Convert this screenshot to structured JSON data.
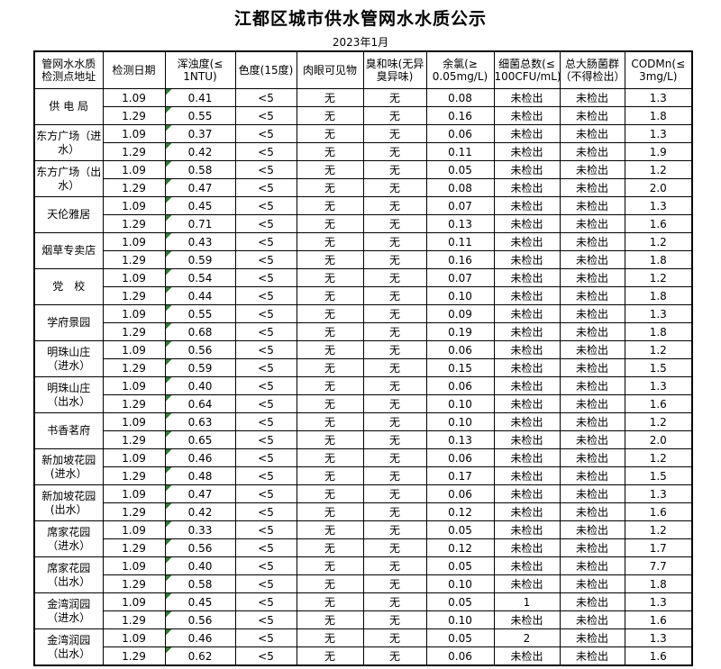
{
  "title": "江都区城市供水管网水水质公示",
  "subtitle": "2023年1月",
  "colors": {
    "triangle_green": "#2e7d32",
    "border": "#000000",
    "background": "#ffffff"
  },
  "table": {
    "headers": [
      "管网水水质\n检测点地址",
      "检测日期",
      "浑浊度(≤\n1NTU)",
      "色度(15度)",
      "肉眼可见物",
      "臭和味(无异\n臭异味)",
      "余氯(≥\n0.05mg/L)",
      "细菌总数(≤\n100CFU/mL)",
      "总大肠菌群\n（不得检出）",
      "CODMn(≤\n3mg/L)"
    ],
    "groups": [
      {
        "location": "供 电 局",
        "rows": [
          {
            "date": "1.09",
            "turbidity": "0.41",
            "color": "<5",
            "visible": "无",
            "odor": "无",
            "chlorine": "0.08",
            "bacteria": "未检出",
            "coliform": "未检出",
            "codmn": "1.3"
          },
          {
            "date": "1.29",
            "turbidity": "0.55",
            "color": "<5",
            "visible": "无",
            "odor": "无",
            "chlorine": "0.16",
            "bacteria": "未检出",
            "coliform": "未检出",
            "codmn": "1.8"
          }
        ]
      },
      {
        "location": "东方广场（进\n水）",
        "rows": [
          {
            "date": "1.09",
            "turbidity": "0.37",
            "color": "<5",
            "visible": "无",
            "odor": "无",
            "chlorine": "0.06",
            "bacteria": "未检出",
            "coliform": "未检出",
            "codmn": "1.3"
          },
          {
            "date": "1.29",
            "turbidity": "0.42",
            "color": "<5",
            "visible": "无",
            "odor": "无",
            "chlorine": "0.11",
            "bacteria": "未检出",
            "coliform": "未检出",
            "codmn": "1.9"
          }
        ]
      },
      {
        "location": "东方广场（出\n水）",
        "rows": [
          {
            "date": "1.09",
            "turbidity": "0.58",
            "color": "<5",
            "visible": "无",
            "odor": "无",
            "chlorine": "0.05",
            "bacteria": "未检出",
            "coliform": "未检出",
            "codmn": "1.2"
          },
          {
            "date": "1.29",
            "turbidity": "0.47",
            "color": "<5",
            "visible": "无",
            "odor": "无",
            "chlorine": "0.08",
            "bacteria": "未检出",
            "coliform": "未检出",
            "codmn": "2.0"
          }
        ]
      },
      {
        "location": "天伦雅居",
        "rows": [
          {
            "date": "1.09",
            "turbidity": "0.45",
            "color": "<5",
            "visible": "无",
            "odor": "无",
            "chlorine": "0.07",
            "bacteria": "未检出",
            "coliform": "未检出",
            "codmn": "1.3"
          },
          {
            "date": "1.29",
            "turbidity": "0.71",
            "color": "<5",
            "visible": "无",
            "odor": "无",
            "chlorine": "0.13",
            "bacteria": "未检出",
            "coliform": "未检出",
            "codmn": "1.6"
          }
        ]
      },
      {
        "location": "烟草专卖店",
        "rows": [
          {
            "date": "1.09",
            "turbidity": "0.43",
            "color": "<5",
            "visible": "无",
            "odor": "无",
            "chlorine": "0.11",
            "bacteria": "未检出",
            "coliform": "未检出",
            "codmn": "1.2"
          },
          {
            "date": "1.29",
            "turbidity": "0.59",
            "color": "<5",
            "visible": "无",
            "odor": "无",
            "chlorine": "0.16",
            "bacteria": "未检出",
            "coliform": "未检出",
            "codmn": "1.8"
          }
        ]
      },
      {
        "location": "党　校",
        "rows": [
          {
            "date": "1.09",
            "turbidity": "0.54",
            "color": "<5",
            "visible": "无",
            "odor": "无",
            "chlorine": "0.07",
            "bacteria": "未检出",
            "coliform": "未检出",
            "codmn": "1.2"
          },
          {
            "date": "1.29",
            "turbidity": "0.44",
            "color": "<5",
            "visible": "无",
            "odor": "无",
            "chlorine": "0.10",
            "bacteria": "未检出",
            "coliform": "未检出",
            "codmn": "1.8"
          }
        ]
      },
      {
        "location": "学府景园",
        "rows": [
          {
            "date": "1.09",
            "turbidity": "0.55",
            "color": "<5",
            "visible": "无",
            "odor": "无",
            "chlorine": "0.09",
            "bacteria": "未检出",
            "coliform": "未检出",
            "codmn": "1.3"
          },
          {
            "date": "1.29",
            "turbidity": "0.68",
            "color": "<5",
            "visible": "无",
            "odor": "无",
            "chlorine": "0.19",
            "bacteria": "未检出",
            "coliform": "未检出",
            "codmn": "1.8"
          }
        ]
      },
      {
        "location": "明珠山庄\n（进水）",
        "rows": [
          {
            "date": "1.09",
            "turbidity": "0.56",
            "color": "<5",
            "visible": "无",
            "odor": "无",
            "chlorine": "0.06",
            "bacteria": "未检出",
            "coliform": "未检出",
            "codmn": "1.2"
          },
          {
            "date": "1.29",
            "turbidity": "0.59",
            "color": "<5",
            "visible": "无",
            "odor": "无",
            "chlorine": "0.15",
            "bacteria": "未检出",
            "coliform": "未检出",
            "codmn": "1.5"
          }
        ]
      },
      {
        "location": "明珠山庄\n（出水）",
        "rows": [
          {
            "date": "1.09",
            "turbidity": "0.40",
            "color": "<5",
            "visible": "无",
            "odor": "无",
            "chlorine": "0.06",
            "bacteria": "未检出",
            "coliform": "未检出",
            "codmn": "1.3"
          },
          {
            "date": "1.29",
            "turbidity": "0.64",
            "color": "<5",
            "visible": "无",
            "odor": "无",
            "chlorine": "0.10",
            "bacteria": "未检出",
            "coliform": "未检出",
            "codmn": "1.6"
          }
        ]
      },
      {
        "location": "书香茗府",
        "rows": [
          {
            "date": "1.09",
            "turbidity": "0.63",
            "color": "<5",
            "visible": "无",
            "odor": "无",
            "chlorine": "0.10",
            "bacteria": "未检出",
            "coliform": "未检出",
            "codmn": "1.2"
          },
          {
            "date": "1.29",
            "turbidity": "0.65",
            "color": "<5",
            "visible": "无",
            "odor": "无",
            "chlorine": "0.13",
            "bacteria": "未检出",
            "coliform": "未检出",
            "codmn": "2.0"
          }
        ]
      },
      {
        "location": "新加坡花园\n(进水）",
        "rows": [
          {
            "date": "1.09",
            "turbidity": "0.46",
            "color": "<5",
            "visible": "无",
            "odor": "无",
            "chlorine": "0.06",
            "bacteria": "未检出",
            "coliform": "未检出",
            "codmn": "1.2"
          },
          {
            "date": "1.29",
            "turbidity": "0.48",
            "color": "<5",
            "visible": "无",
            "odor": "无",
            "chlorine": "0.17",
            "bacteria": "未检出",
            "coliform": "未检出",
            "codmn": "1.5"
          }
        ]
      },
      {
        "location": "新加坡花园\n(出水）",
        "rows": [
          {
            "date": "1.09",
            "turbidity": "0.47",
            "color": "<5",
            "visible": "无",
            "odor": "无",
            "chlorine": "0.06",
            "bacteria": "未检出",
            "coliform": "未检出",
            "codmn": "1.3"
          },
          {
            "date": "1.29",
            "turbidity": "0.42",
            "color": "<5",
            "visible": "无",
            "odor": "无",
            "chlorine": "0.12",
            "bacteria": "未检出",
            "coliform": "未检出",
            "codmn": "1.6"
          }
        ]
      },
      {
        "location": "席家花园\n（进水）",
        "rows": [
          {
            "date": "1.09",
            "turbidity": "0.33",
            "color": "<5",
            "visible": "无",
            "odor": "无",
            "chlorine": "0.05",
            "bacteria": "未检出",
            "coliform": "未检出",
            "codmn": "1.2"
          },
          {
            "date": "1.29",
            "turbidity": "0.56",
            "color": "<5",
            "visible": "无",
            "odor": "无",
            "chlorine": "0.12",
            "bacteria": "未检出",
            "coliform": "未检出",
            "codmn": "1.7"
          }
        ]
      },
      {
        "location": "席家花园\n（出水）",
        "rows": [
          {
            "date": "1.09",
            "turbidity": "0.40",
            "color": "<5",
            "visible": "无",
            "odor": "无",
            "chlorine": "0.05",
            "bacteria": "未检出",
            "coliform": "未检出",
            "codmn": "7.7"
          },
          {
            "date": "1.29",
            "turbidity": "0.58",
            "color": "<5",
            "visible": "无",
            "odor": "无",
            "chlorine": "0.10",
            "bacteria": "未检出",
            "coliform": "未检出",
            "codmn": "1.8"
          }
        ]
      },
      {
        "location": "金湾润园\n（进水）",
        "rows": [
          {
            "date": "1.09",
            "turbidity": "0.45",
            "color": "<5",
            "visible": "无",
            "odor": "无",
            "chlorine": "0.05",
            "bacteria": "1",
            "coliform": "未检出",
            "codmn": "1.3"
          },
          {
            "date": "1.29",
            "turbidity": "0.56",
            "color": "<5",
            "visible": "无",
            "odor": "无",
            "chlorine": "0.10",
            "bacteria": "未检出",
            "coliform": "未检出",
            "codmn": "1.6"
          }
        ]
      },
      {
        "location": "金湾润园\n（出水）",
        "rows": [
          {
            "date": "1.09",
            "turbidity": "0.46",
            "color": "<5",
            "visible": "无",
            "odor": "无",
            "chlorine": "0.05",
            "bacteria": "2",
            "coliform": "未检出",
            "codmn": "1.3"
          },
          {
            "date": "1.29",
            "turbidity": "0.62",
            "color": "<5",
            "visible": "无",
            "odor": "无",
            "chlorine": "0.06",
            "bacteria": "未检出",
            "coliform": "未检出",
            "codmn": "1.6"
          }
        ]
      }
    ]
  }
}
